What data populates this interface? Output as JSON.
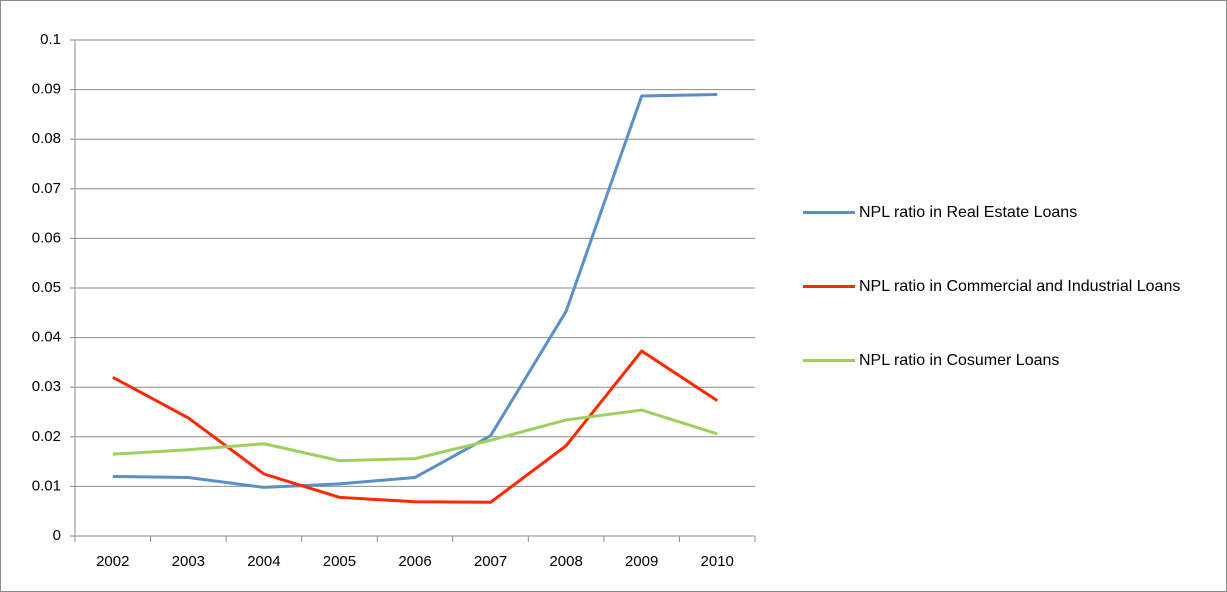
{
  "chart_data": {
    "type": "line",
    "categories": [
      "2002",
      "2003",
      "2004",
      "2005",
      "2006",
      "2007",
      "2008",
      "2009",
      "2010"
    ],
    "series": [
      {
        "name": "NPL ratio in Real Estate Loans",
        "color": "#5b8fc7",
        "values": [
          0.012,
          0.0118,
          0.0098,
          0.0105,
          0.0118,
          0.0202,
          0.0453,
          0.0887,
          0.089
        ]
      },
      {
        "name": "NPL ratio in Commercial and Industrial Loans",
        "color": "#ff2800",
        "values": [
          0.032,
          0.0238,
          0.0125,
          0.0078,
          0.0069,
          0.0068,
          0.0182,
          0.0373,
          0.0273
        ]
      },
      {
        "name": "NPL ratio in Cosumer Loans",
        "color": "#9dd05c",
        "values": [
          0.0165,
          0.0174,
          0.0186,
          0.0152,
          0.0156,
          0.0193,
          0.0234,
          0.0254,
          0.0206
        ]
      }
    ],
    "ylim": [
      0,
      0.1
    ],
    "yticks": [
      0,
      0.01,
      0.02,
      0.03,
      0.04,
      0.05,
      0.06,
      0.07,
      0.08,
      0.09,
      0.1
    ],
    "grid": true,
    "legend": "right"
  }
}
